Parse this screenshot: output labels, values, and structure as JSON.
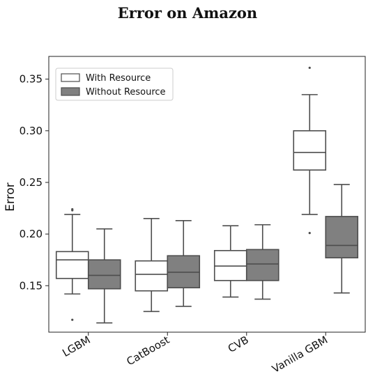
{
  "chart_data": {
    "type": "box",
    "title": "Error on Amazon",
    "ylabel": "Error",
    "xlabel": "",
    "ylim": [
      0.105,
      0.372
    ],
    "yticks": [
      0.15,
      0.2,
      0.25,
      0.3,
      0.35
    ],
    "categories": [
      "LGBM",
      "CatBoost",
      "CVB",
      "Vanilla GBM"
    ],
    "legend": {
      "placement": "top-left"
    },
    "series": [
      {
        "name": "With Resource",
        "color": "#ffffff",
        "boxes": [
          {
            "whisker_low": 0.142,
            "q1": 0.157,
            "median": 0.175,
            "q3": 0.183,
            "whisker_high": 0.219,
            "outliers": [
              0.117,
              0.223,
              0.224
            ]
          },
          {
            "whisker_low": 0.125,
            "q1": 0.145,
            "median": 0.161,
            "q3": 0.174,
            "whisker_high": 0.215,
            "outliers": []
          },
          {
            "whisker_low": 0.139,
            "q1": 0.155,
            "median": 0.169,
            "q3": 0.184,
            "whisker_high": 0.208,
            "outliers": []
          },
          {
            "whisker_low": 0.219,
            "q1": 0.262,
            "median": 0.279,
            "q3": 0.3,
            "whisker_high": 0.335,
            "outliers": [
              0.201,
              0.361
            ]
          }
        ]
      },
      {
        "name": "Without Resource",
        "color": "#808080",
        "boxes": [
          {
            "whisker_low": 0.114,
            "q1": 0.147,
            "median": 0.16,
            "q3": 0.175,
            "whisker_high": 0.205,
            "outliers": []
          },
          {
            "whisker_low": 0.13,
            "q1": 0.148,
            "median": 0.163,
            "q3": 0.179,
            "whisker_high": 0.213,
            "outliers": []
          },
          {
            "whisker_low": 0.137,
            "q1": 0.155,
            "median": 0.171,
            "q3": 0.185,
            "whisker_high": 0.209,
            "outliers": []
          },
          {
            "whisker_low": 0.143,
            "q1": 0.177,
            "median": 0.189,
            "q3": 0.217,
            "whisker_high": 0.248,
            "outliers": []
          }
        ]
      }
    ]
  }
}
